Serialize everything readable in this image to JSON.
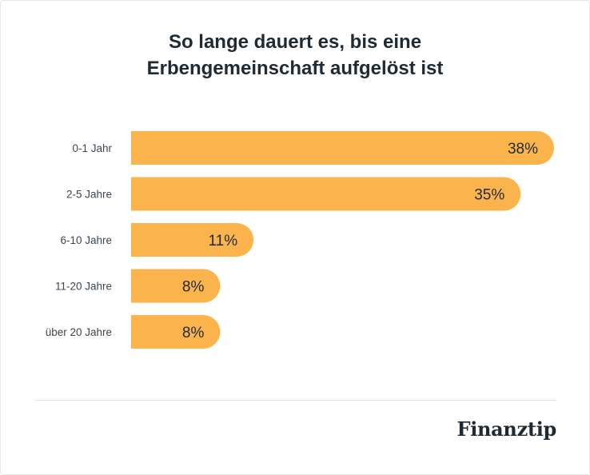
{
  "chart_data": {
    "type": "bar",
    "orientation": "horizontal",
    "title": [
      "So lange dauert es, bis eine",
      "Erbengemeinschaft aufgelöst ist"
    ],
    "categories": [
      "0-1 Jahr",
      "2-5 Jahre",
      "6-10 Jahre",
      "11-20 Jahre",
      "über 20 Jahre"
    ],
    "values": [
      38,
      35,
      11,
      8,
      8
    ],
    "value_labels": [
      "38%",
      "35%",
      "11%",
      "8%",
      "8%"
    ],
    "unit": "%",
    "xlim": [
      0,
      38
    ],
    "bar_color": "#fbb44b",
    "grid": false
  },
  "footer": {
    "brand": "Finanztip"
  }
}
